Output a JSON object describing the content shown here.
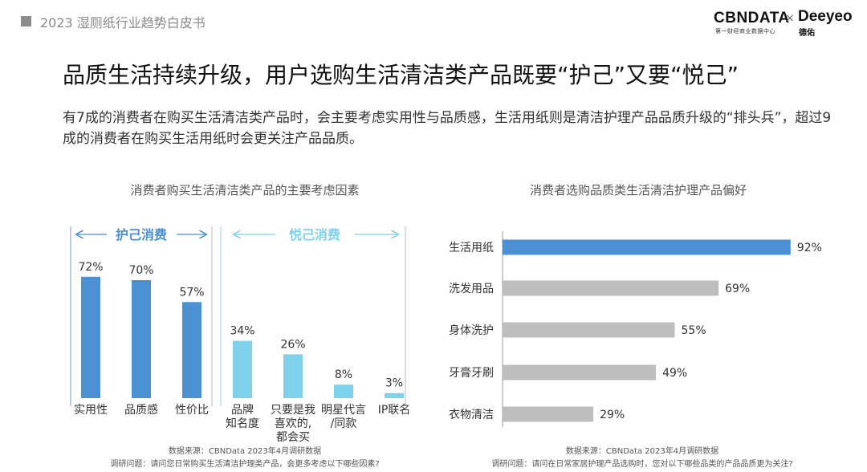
{
  "header": {
    "report_title": "2023 湿厕纸行业趋势白皮书",
    "logo_cbn": "CBNDATA",
    "logo_cbn_sub": "第一财经商业数据中心",
    "logo_x": "×",
    "logo_deeyeo": "Deeyeo",
    "logo_deeyeo_sub": "德佑"
  },
  "main": {
    "title": "品质生活持续升级，用户选购生活清洁类产品既要“护己”又要“悦己”",
    "description": "有7成的消费者在购买生活清洁类产品时，会主要考虑实用性与品质感，生活用纸则是清洁护理产品品质升级的“排头兵”，超过9成的消费者在购买生活用纸时会更关注产品品质。"
  },
  "chart_data": [
    {
      "type": "bar",
      "title": "消费者购买生活清洁类产品的主要考虑因素",
      "categories": [
        "实用性",
        "品质感",
        "性价比",
        "品牌\n知名度",
        "只要是我\n喜欢的,\n都会买",
        "明星代言\n/同款",
        "IP联名"
      ],
      "values": [
        72,
        70,
        57,
        34,
        26,
        8,
        3
      ],
      "value_labels": [
        "72%",
        "70%",
        "57%",
        "34%",
        "26%",
        "8%",
        "3%"
      ],
      "groups": [
        {
          "label": "护己消费",
          "color": "#4a90d2",
          "indices": [
            0,
            1,
            2
          ]
        },
        {
          "label": "悦己消费",
          "color": "#7fd2ec",
          "indices": [
            3,
            4,
            5,
            6
          ]
        }
      ],
      "ylim": [
        0,
        100
      ],
      "grid": false,
      "source": "数据来源：CBNData 2023年4月调研数据",
      "question": "调研问题：请问您日常购买生活清洁护理类产品，会更多考虑以下哪些因素?"
    },
    {
      "type": "bar",
      "orientation": "horizontal",
      "title": "消费者选购品质类生活清洁护理产品偏好",
      "categories": [
        "生活用纸",
        "洗发用品",
        "身体洗护",
        "牙膏牙刷",
        "衣物清洁"
      ],
      "values": [
        92,
        69,
        55,
        49,
        29
      ],
      "value_labels": [
        "92%",
        "69%",
        "55%",
        "49%",
        "29%"
      ],
      "colors": [
        "#4a90d2",
        "#bdbdbd",
        "#bdbdbd",
        "#bdbdbd",
        "#bdbdbd"
      ],
      "xlim": [
        0,
        100
      ],
      "grid": false,
      "source": "数据来源：CBNData 2023年4月调研数据",
      "question": "调研问题：请问在日常家居护理产品选购时，您对以下哪些品类的产品品质更为关注?"
    }
  ]
}
